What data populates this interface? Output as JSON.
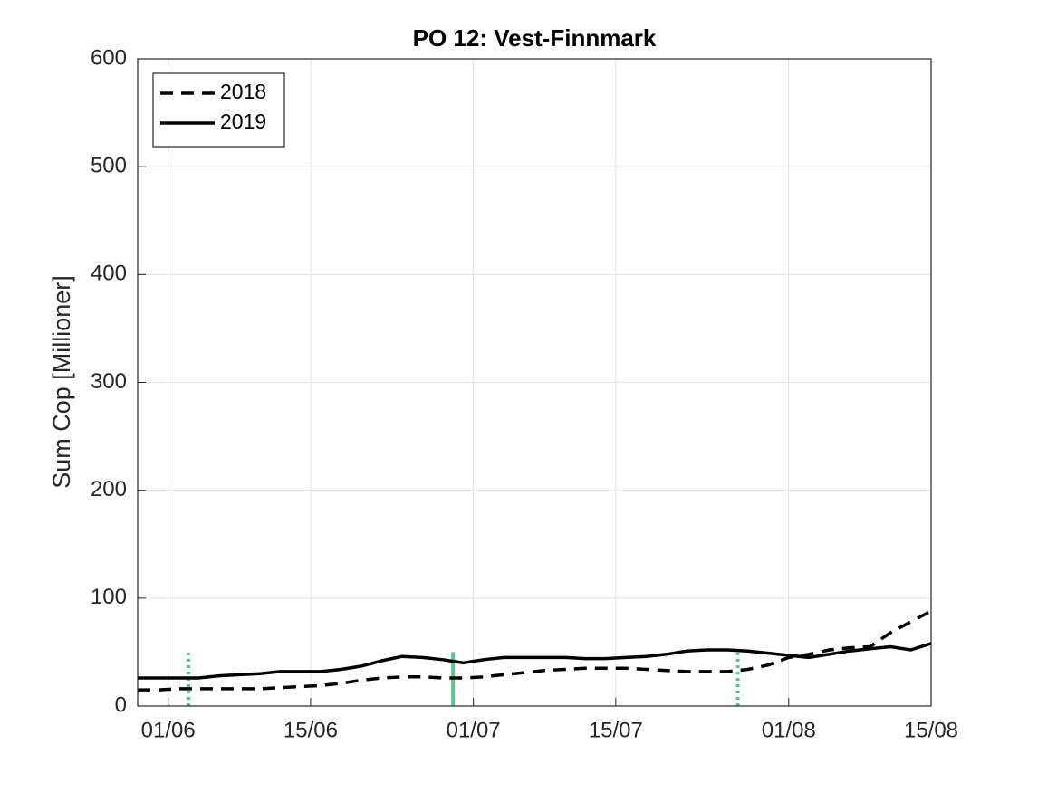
{
  "chart_data": {
    "type": "line",
    "title": "PO 12: Vest-Finnmark",
    "y_label": "Sum Cop [Millioner]",
    "x": [
      "29/05",
      "31/05",
      "02/06",
      "04/06",
      "06/06",
      "08/06",
      "10/06",
      "12/06",
      "14/06",
      "16/06",
      "18/06",
      "20/06",
      "22/06",
      "24/06",
      "26/06",
      "28/06",
      "30/06",
      "02/07",
      "04/07",
      "06/07",
      "08/07",
      "10/07",
      "12/07",
      "14/07",
      "16/07",
      "18/07",
      "20/07",
      "22/07",
      "24/07",
      "26/07",
      "28/07",
      "30/07",
      "01/08",
      "03/08",
      "05/08",
      "07/08",
      "09/08",
      "11/08",
      "13/08",
      "15/08"
    ],
    "series": [
      {
        "name": "2018",
        "color": "#000000",
        "dash": "dashed",
        "values": [
          15,
          15,
          16,
          16,
          16,
          16,
          16,
          17,
          18,
          19,
          21,
          24,
          26,
          27,
          27,
          26,
          26,
          27,
          29,
          31,
          33,
          34,
          35,
          35,
          35,
          34,
          33,
          32,
          32,
          32,
          34,
          38,
          45,
          48,
          52,
          54,
          55,
          68,
          78,
          88
        ]
      },
      {
        "name": "2019",
        "color": "#000000",
        "dash": "solid",
        "values": [
          26,
          26,
          26,
          26,
          28,
          29,
          30,
          32,
          32,
          32,
          34,
          37,
          42,
          46,
          45,
          43,
          40,
          43,
          45,
          45,
          45,
          45,
          44,
          44,
          45,
          46,
          48,
          51,
          52,
          52,
          51,
          49,
          47,
          45,
          48,
          51,
          53,
          55,
          52,
          58
        ]
      }
    ],
    "markers": {
      "color": "#55c98b",
      "top": 50,
      "lines": [
        {
          "x": "03/06",
          "style": "dotted"
        },
        {
          "x": "29/06",
          "style": "solid"
        },
        {
          "x": "27/07",
          "style": "dotted"
        }
      ]
    },
    "xlim": [
      "29/05",
      "15/08"
    ],
    "xticks": [
      "01/06",
      "15/06",
      "01/07",
      "15/07",
      "01/08",
      "15/08"
    ],
    "ylim": [
      0,
      600
    ],
    "yticks": [
      0,
      100,
      200,
      300,
      400,
      500,
      600
    ],
    "grid": true,
    "legend": "top-left"
  }
}
